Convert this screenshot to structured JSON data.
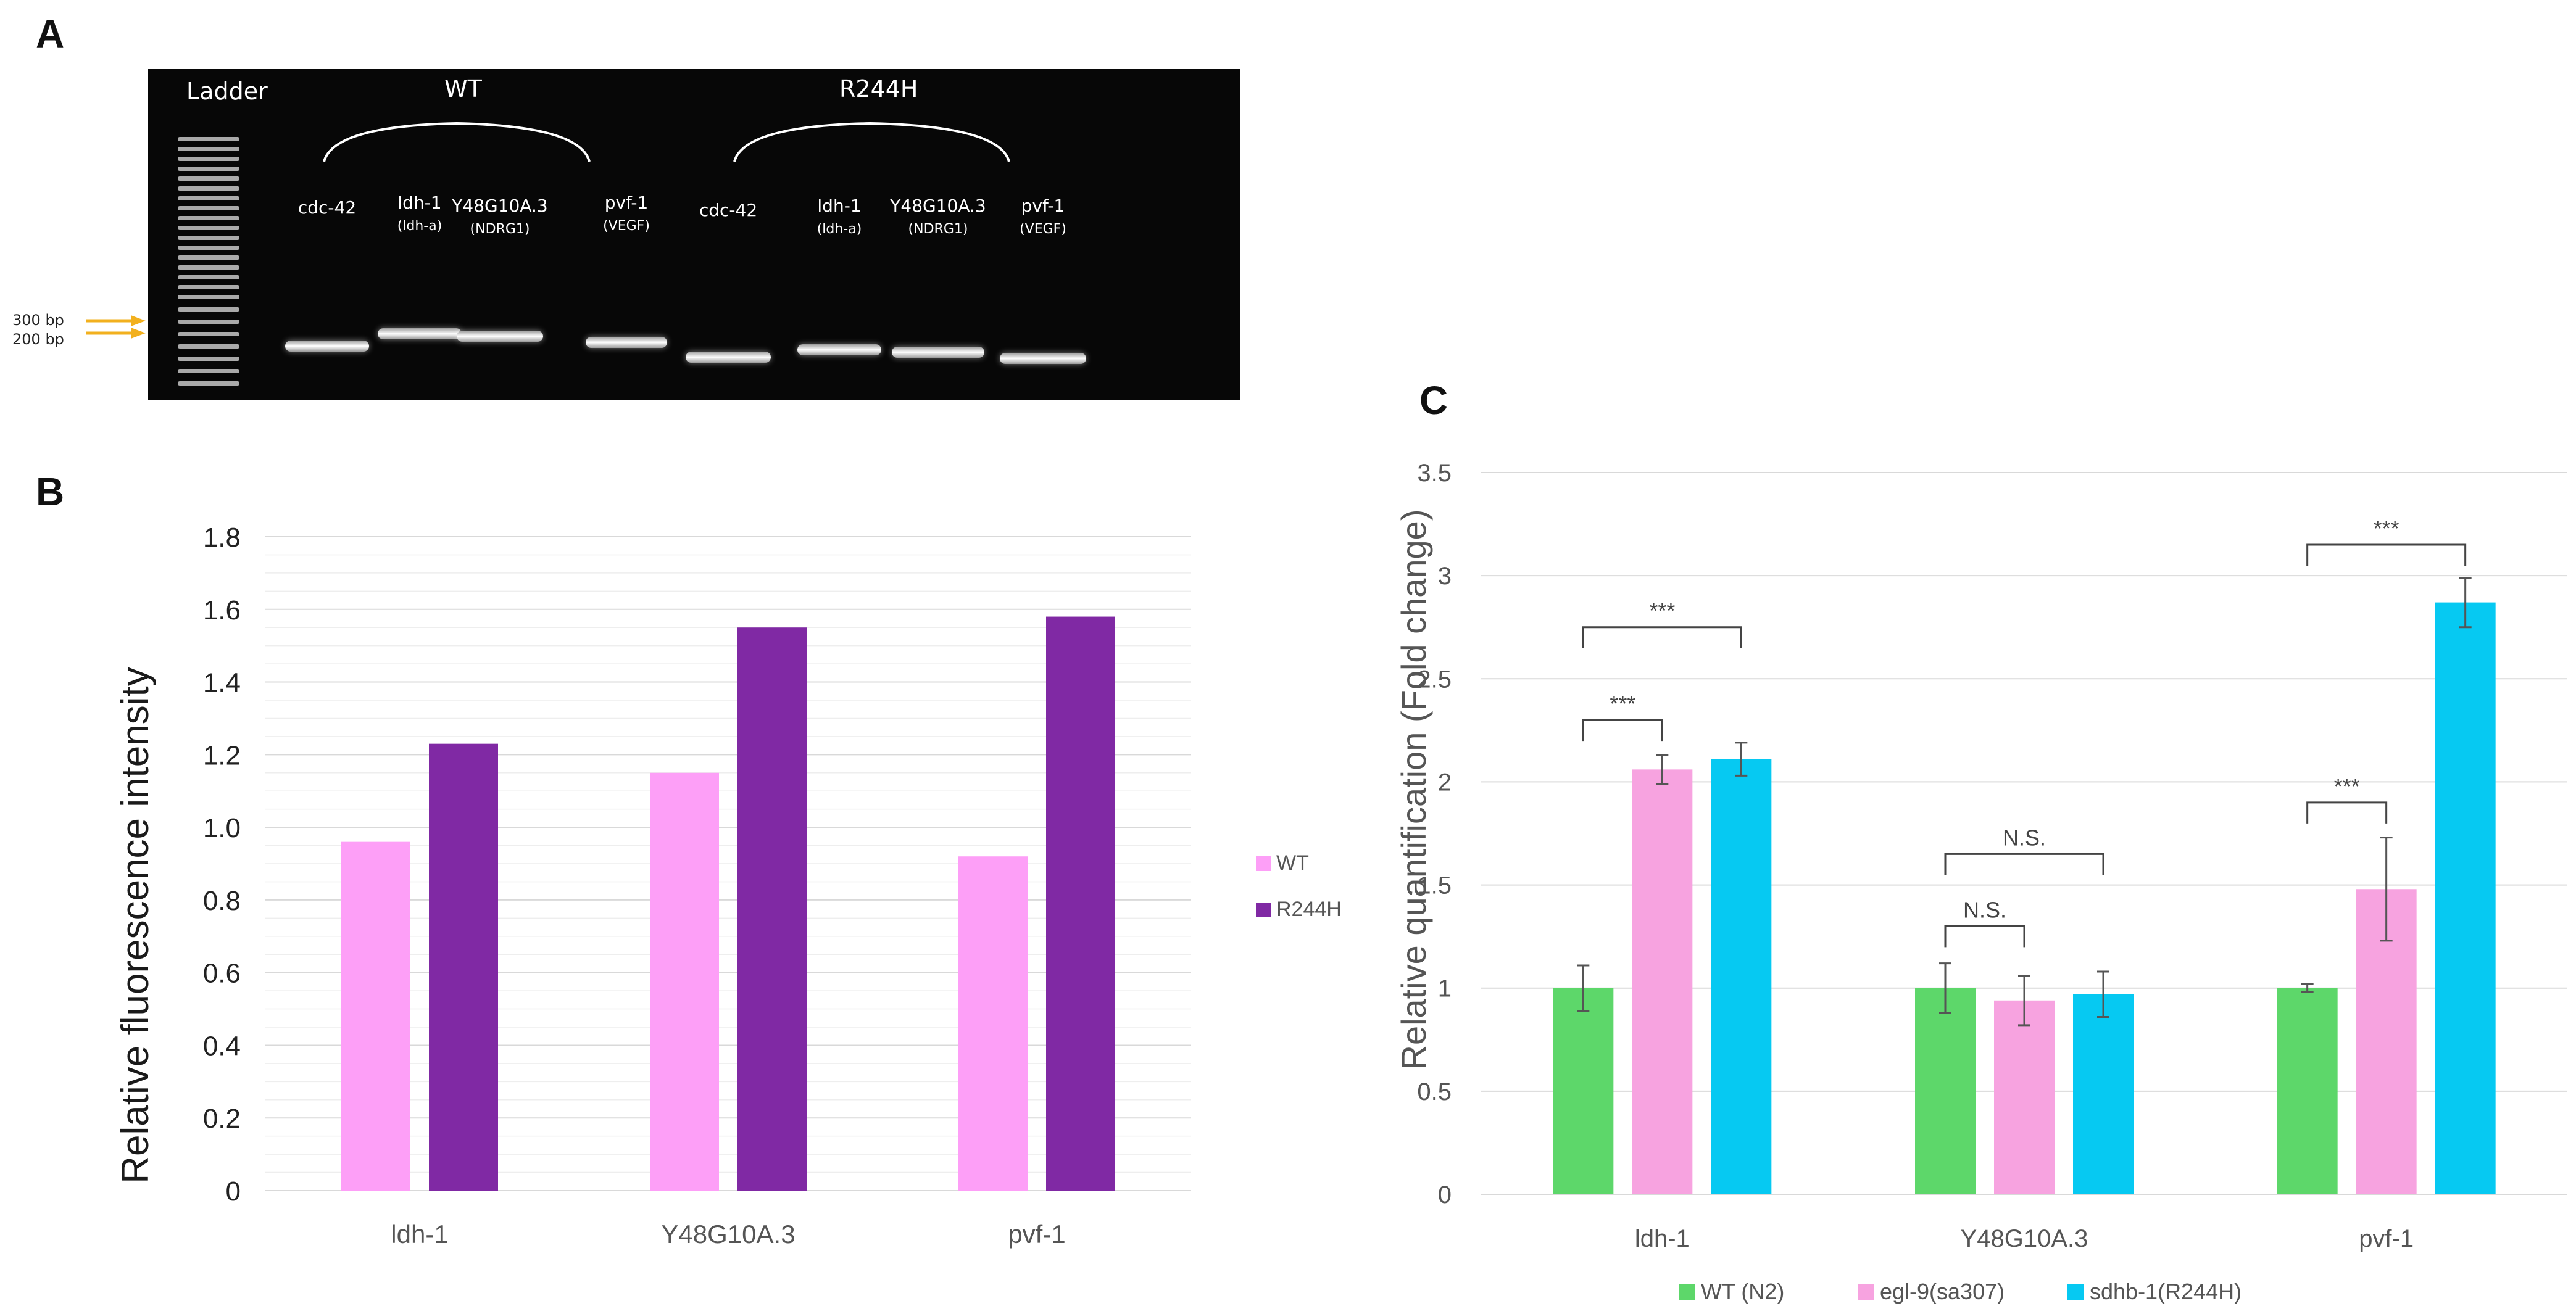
{
  "panels": {
    "a": "A",
    "b": "B",
    "c": "C"
  },
  "gel": {
    "ladder_label": "Ladder",
    "group_labels": [
      "WT",
      "R244H"
    ],
    "lanes": [
      {
        "name": "cdc-42",
        "sub": ""
      },
      {
        "name": "ldh-1",
        "sub": "(ldh-a)"
      },
      {
        "name": "Y48G10A.3",
        "sub": "(NDRG1)"
      },
      {
        "name": "pvf-1",
        "sub": "(VEGF)"
      },
      {
        "name": "cdc-42",
        "sub": ""
      },
      {
        "name": "ldh-1",
        "sub": "(ldh-a)"
      },
      {
        "name": "Y48G10A.3",
        "sub": "(NDRG1)"
      },
      {
        "name": "pvf-1",
        "sub": "(VEGF)"
      }
    ],
    "marker_labels": [
      "300 bp",
      "200 bp"
    ],
    "marker_color": "#f2b01e"
  },
  "chart_data": [
    {
      "type": "bar",
      "title": "",
      "xlabel": "",
      "ylabel": "Relative fluorescence intensity",
      "categories": [
        "ldh-1",
        "Y48G10A.3",
        "pvf-1"
      ],
      "series": [
        {
          "name": "WT",
          "values": [
            0.96,
            1.15,
            0.92
          ],
          "color": "#fd9ff7"
        },
        {
          "name": "R244H",
          "values": [
            1.23,
            1.55,
            1.58
          ],
          "color": "#8029a4"
        }
      ],
      "ylim": [
        0,
        1.8
      ],
      "yticks": [
        "0",
        "0.2",
        "0.4",
        "0.6",
        "0.8",
        "1.0",
        "1.2",
        "1.4",
        "1.6",
        "1.8"
      ],
      "grid": true,
      "legend": "right"
    },
    {
      "type": "bar",
      "title": "",
      "xlabel": "",
      "ylabel": "Relative quantification (Fold change)",
      "categories": [
        "ldh-1",
        "Y48G10A.3",
        "pvf-1"
      ],
      "series": [
        {
          "name": "WT (N2)",
          "values": [
            1.0,
            1.0,
            1.0
          ],
          "errors": [
            0.11,
            0.12,
            0.02
          ],
          "color": "#5dd76a"
        },
        {
          "name": "egl-9(sa307)",
          "values": [
            2.06,
            0.94,
            1.48
          ],
          "errors": [
            0.07,
            0.12,
            0.25
          ],
          "color": "#f7a3e0"
        },
        {
          "name": "sdhb-1(R244H)",
          "values": [
            2.11,
            0.97,
            2.87
          ],
          "errors": [
            0.08,
            0.11,
            0.12
          ],
          "color": "#06c9f2"
        }
      ],
      "ylim": [
        0,
        3.5
      ],
      "yticks": [
        "0",
        "0.5",
        "1",
        "1.5",
        "2",
        "2.5",
        "3",
        "3.5"
      ],
      "grid": true,
      "legend": "bottom",
      "annotations": [
        {
          "text": "***",
          "category": 0,
          "from_series": 0,
          "to_series": 1,
          "y": 2.3
        },
        {
          "text": "***",
          "category": 0,
          "from_series": 0,
          "to_series": 2,
          "y": 2.75
        },
        {
          "text": "N.S.",
          "category": 1,
          "from_series": 0,
          "to_series": 1,
          "y": 1.3
        },
        {
          "text": "N.S.",
          "category": 1,
          "from_series": 0,
          "to_series": 2,
          "y": 1.65
        },
        {
          "text": "***",
          "category": 2,
          "from_series": 0,
          "to_series": 1,
          "y": 1.9
        },
        {
          "text": "***",
          "category": 2,
          "from_series": 0,
          "to_series": 2,
          "y": 3.15
        }
      ]
    }
  ]
}
